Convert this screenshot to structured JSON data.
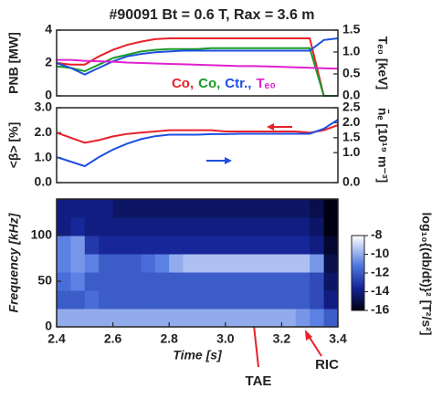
{
  "chart_data": [
    {
      "type": "line",
      "title": "#90091 Bt = 0.6 T, Rax = 3.6 m",
      "ylabel": "PNB [MW]",
      "y2label": "Tₑ₀ [keV]",
      "x": [
        2.4,
        2.45,
        2.5,
        2.55,
        2.6,
        2.65,
        2.7,
        2.75,
        2.8,
        2.85,
        2.9,
        2.95,
        3.0,
        3.05,
        3.1,
        3.15,
        3.2,
        3.25,
        3.3,
        3.35,
        3.4
      ],
      "xlim": [
        2.4,
        3.4
      ],
      "ylim": [
        0,
        4
      ],
      "yticks": [
        0,
        2,
        4
      ],
      "y2lim": [
        0,
        1.5
      ],
      "y2ticks": [
        {
          "value": 0,
          "label": "0.0"
        },
        0.5,
        {
          "value": 1,
          "label": "1.0"
        },
        1.5
      ],
      "series": [
        {
          "name": "Co,",
          "color": "#e8202a",
          "values": [
            2.0,
            1.9,
            1.9,
            2.4,
            2.8,
            3.1,
            3.3,
            3.45,
            3.5,
            3.5,
            3.5,
            3.5,
            3.5,
            3.5,
            3.5,
            3.5,
            3.5,
            3.5,
            3.5,
            0,
            0
          ]
        },
        {
          "name": "Co,",
          "color": "#1a9a2a",
          "values": [
            1.8,
            1.7,
            1.5,
            1.9,
            2.3,
            2.5,
            2.7,
            2.8,
            2.85,
            2.85,
            2.85,
            2.9,
            2.9,
            2.9,
            2.9,
            2.9,
            2.9,
            2.9,
            2.9,
            0,
            0
          ]
        },
        {
          "name": "Ctr.,",
          "color": "#1f4fe0",
          "values": [
            2.0,
            1.7,
            1.3,
            1.7,
            2.1,
            2.4,
            2.55,
            2.65,
            2.7,
            2.75,
            2.75,
            2.75,
            2.75,
            2.75,
            2.75,
            2.75,
            2.75,
            2.75,
            2.75,
            3.4,
            3.5
          ]
        },
        {
          "name": "Tₑ₀",
          "color": "#e020d0",
          "axis": "y2",
          "values": [
            0.82,
            0.82,
            0.8,
            0.79,
            0.78,
            0.76,
            0.75,
            0.74,
            0.73,
            0.72,
            0.71,
            0.7,
            0.69,
            0.68,
            0.68,
            0.67,
            0.66,
            0.65,
            0.64,
            0.63,
            0.62
          ]
        }
      ]
    },
    {
      "type": "line",
      "ylabel": "<β> [%]",
      "y2label": "n̄ₑ [10¹⁹ m⁻³]",
      "x": [
        2.4,
        2.45,
        2.5,
        2.55,
        2.6,
        2.65,
        2.7,
        2.75,
        2.8,
        2.85,
        2.9,
        2.95,
        3.0,
        3.05,
        3.1,
        3.15,
        3.2,
        3.25,
        3.3,
        3.35,
        3.4
      ],
      "xlim": [
        2.4,
        3.4
      ],
      "ylim": [
        0,
        3
      ],
      "yticks": [
        {
          "value": 0,
          "label": "0.0"
        },
        {
          "value": 1,
          "label": "1.0"
        },
        {
          "value": 2,
          "label": "2.0"
        },
        {
          "value": 3,
          "label": "3.0"
        }
      ],
      "y2lim": [
        0,
        2.5
      ],
      "y2ticks": [
        {
          "value": 0,
          "label": "0.0"
        },
        {
          "value": 1,
          "label": "1.0"
        },
        1.5,
        {
          "value": 2,
          "label": "2.0"
        },
        2.5
      ],
      "series": [
        {
          "color": "#e8202a",
          "values": [
            2.0,
            1.8,
            1.6,
            1.7,
            1.85,
            1.95,
            2.0,
            2.05,
            2.1,
            2.1,
            2.1,
            2.1,
            2.05,
            2.05,
            2.05,
            2.05,
            2.05,
            2.05,
            2.0,
            2.1,
            2.3
          ]
        },
        {
          "color": "#1f4fe0",
          "axis": "y2",
          "values": [
            0.85,
            0.7,
            0.55,
            0.85,
            1.1,
            1.3,
            1.45,
            1.55,
            1.6,
            1.6,
            1.6,
            1.62,
            1.62,
            1.63,
            1.63,
            1.63,
            1.63,
            1.63,
            1.63,
            1.8,
            2.1
          ]
        }
      ]
    },
    {
      "type": "heatmap",
      "xlabel": "Time [s]",
      "ylabel": "Frequency [kHz]",
      "colorbar_label": "log₁₀{(db/dt)}² [T²/s²]",
      "xlim": [
        2.4,
        3.4
      ],
      "xticks": [
        2.4,
        2.6,
        2.8,
        {
          "value": 3,
          "label": "3.0"
        },
        3.2,
        3.4
      ],
      "ylim": [
        0,
        140
      ],
      "yticks": [
        0,
        50,
        100
      ],
      "zlim": [
        -16,
        -8
      ],
      "zticks": [
        -8,
        -10,
        -12,
        -14,
        -16
      ],
      "x": [
        2.4,
        2.45,
        2.5,
        2.55,
        2.6,
        2.65,
        2.7,
        2.75,
        2.8,
        2.85,
        2.9,
        2.95,
        3.0,
        3.05,
        3.1,
        3.15,
        3.2,
        3.25,
        3.3,
        3.35,
        3.4
      ],
      "y": [
        0,
        20,
        40,
        60,
        80,
        100,
        120,
        140
      ],
      "z": [
        [
          -10,
          -10,
          -10,
          -10,
          -10,
          -10,
          -10,
          -10,
          -10,
          -10,
          -10,
          -10,
          -10,
          -10,
          -10,
          -10,
          -10,
          -10.5,
          -11,
          -12
        ],
        [
          -12,
          -12,
          -11.5,
          -12,
          -12,
          -12,
          -12,
          -12,
          -12,
          -12,
          -12,
          -12,
          -12,
          -12,
          -12,
          -12,
          -12,
          -12,
          -12.5,
          -14
        ],
        [
          -11.5,
          -11,
          -12,
          -12,
          -12,
          -12,
          -12,
          -12,
          -12,
          -12,
          -12,
          -12,
          -12,
          -12,
          -12,
          -12,
          -12,
          -12,
          -12.5,
          -14.5
        ],
        [
          -11,
          -10.5,
          -11,
          -12,
          -12,
          -12,
          -11.5,
          -11,
          -10,
          -9.5,
          -9.5,
          -9.5,
          -9.5,
          -9.5,
          -9.5,
          -9.5,
          -9.5,
          -9.5,
          -10.5,
          -15
        ],
        [
          -11,
          -10.5,
          -13,
          -13.5,
          -13.5,
          -13.5,
          -13.5,
          -13.5,
          -13.5,
          -13.5,
          -13.5,
          -13.5,
          -13.5,
          -13.5,
          -13.5,
          -13.5,
          -13.5,
          -13.5,
          -14,
          -15.5
        ],
        [
          -14,
          -13.5,
          -14,
          -14,
          -14,
          -14,
          -14,
          -14,
          -14,
          -14,
          -14,
          -14,
          -14,
          -14,
          -14,
          -14,
          -14,
          -14,
          -14.5,
          -16
        ],
        [
          -14,
          -14,
          -14,
          -14,
          -14.5,
          -14.5,
          -14.5,
          -14.5,
          -14.5,
          -14.5,
          -14.5,
          -14.5,
          -14.5,
          -14.5,
          -14.5,
          -14.5,
          -14.5,
          -14.5,
          -15,
          -16
        ]
      ],
      "annotations": [
        {
          "text": "TAE"
        },
        {
          "text": "RIC"
        }
      ]
    }
  ]
}
